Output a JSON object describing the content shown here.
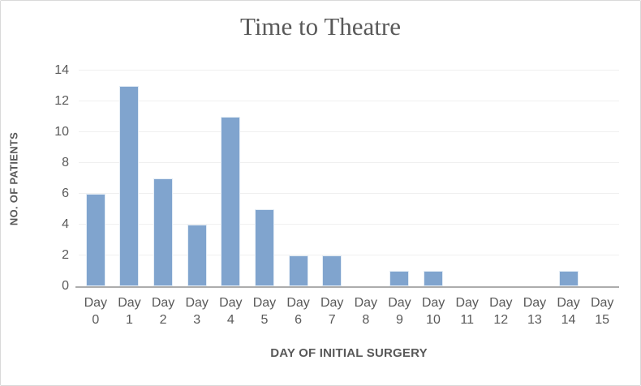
{
  "chart_data": {
    "type": "bar",
    "title": "Time to Theatre",
    "xlabel": "DAY OF INITIAL SURGERY",
    "ylabel": "NO. OF PATIENTS",
    "categories": [
      "Day 0",
      "Day 1",
      "Day 2",
      "Day 3",
      "Day 4",
      "Day 5",
      "Day 6",
      "Day 7",
      "Day 8",
      "Day 9",
      "Day 10",
      "Day 11",
      "Day 12",
      "Day 13",
      "Day 14",
      "Day 15"
    ],
    "values": [
      6,
      13,
      7,
      4,
      11,
      5,
      2,
      2,
      0,
      1,
      1,
      0,
      0,
      0,
      1,
      0
    ],
    "ylim": [
      0,
      14
    ],
    "yticks": [
      0,
      2,
      4,
      6,
      8,
      10,
      12,
      14
    ],
    "grid": true,
    "legend": false
  },
  "colors": {
    "bar": "#80A4CE",
    "bar_edge": "#E4EDF6",
    "text": "#595959",
    "gridline": "#F0F0F0",
    "axis_line": "#ACACAC",
    "frame_border": "#D9D9D9",
    "background": "#FFFFFF"
  }
}
